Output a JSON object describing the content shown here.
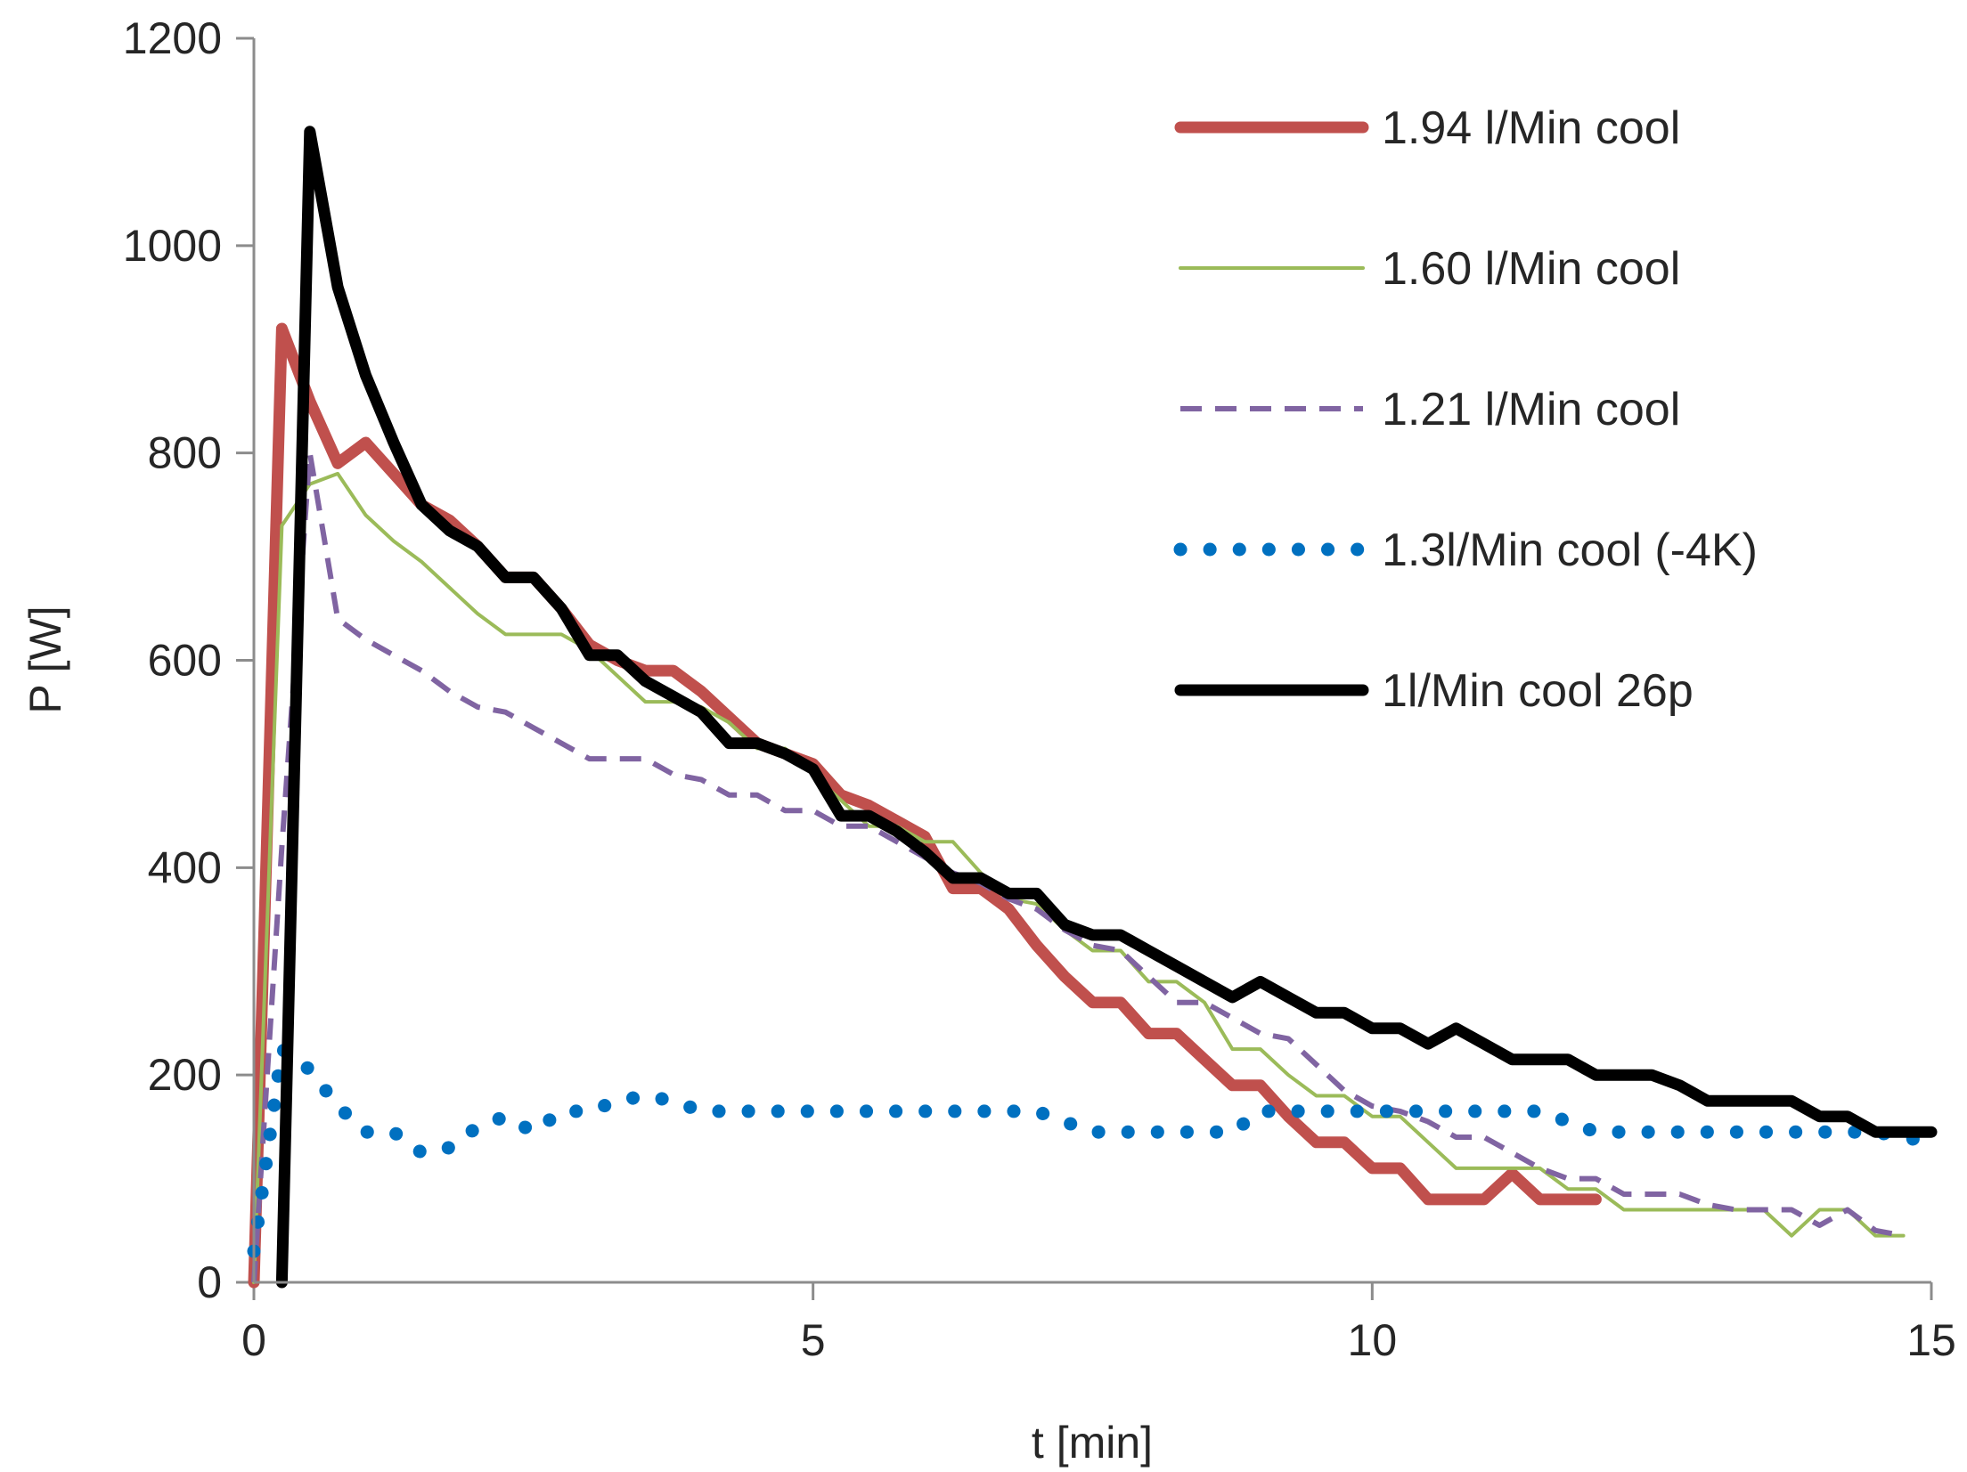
{
  "chart_data": {
    "type": "line",
    "title": "",
    "xlabel": "t [min]",
    "ylabel": "P [W]",
    "xlim": [
      0,
      15
    ],
    "ylim": [
      0,
      1200
    ],
    "xticks": [
      0,
      5,
      10,
      15
    ],
    "yticks": [
      0,
      200,
      400,
      600,
      800,
      1000,
      1200
    ],
    "xtick_labels": [
      "0",
      "5",
      "10",
      "15"
    ],
    "ytick_labels": [
      "0",
      "200",
      "400",
      "600",
      "800",
      "1000",
      "1200"
    ],
    "grid": false,
    "legend_position": "top-right",
    "series": [
      {
        "name": "1.94 l/Min cool",
        "color": "#C0504D",
        "style": "solid-thick",
        "points": [
          [
            0,
            0
          ],
          [
            0.25,
            920
          ],
          [
            0.5,
            850
          ],
          [
            0.75,
            790
          ],
          [
            1.0,
            810
          ],
          [
            1.25,
            780
          ],
          [
            1.5,
            750
          ],
          [
            1.75,
            735
          ],
          [
            2.0,
            710
          ],
          [
            2.25,
            680
          ],
          [
            2.5,
            680
          ],
          [
            2.75,
            650
          ],
          [
            3.0,
            615
          ],
          [
            3.25,
            600
          ],
          [
            3.5,
            590
          ],
          [
            3.75,
            590
          ],
          [
            4.0,
            570
          ],
          [
            4.25,
            545
          ],
          [
            4.5,
            520
          ],
          [
            4.75,
            510
          ],
          [
            5.0,
            500
          ],
          [
            5.25,
            470
          ],
          [
            5.5,
            460
          ],
          [
            5.75,
            445
          ],
          [
            6.0,
            430
          ],
          [
            6.25,
            380
          ],
          [
            6.5,
            380
          ],
          [
            6.75,
            360
          ],
          [
            7.0,
            325
          ],
          [
            7.25,
            295
          ],
          [
            7.5,
            270
          ],
          [
            7.75,
            270
          ],
          [
            8.0,
            240
          ],
          [
            8.25,
            240
          ],
          [
            8.5,
            215
          ],
          [
            8.75,
            190
          ],
          [
            9.0,
            190
          ],
          [
            9.25,
            160
          ],
          [
            9.5,
            135
          ],
          [
            9.75,
            135
          ],
          [
            10.0,
            110
          ],
          [
            10.25,
            110
          ],
          [
            10.5,
            80
          ],
          [
            10.75,
            80
          ],
          [
            11.0,
            80
          ],
          [
            11.25,
            105
          ],
          [
            11.5,
            80
          ],
          [
            11.75,
            80
          ],
          [
            12.0,
            80
          ]
        ]
      },
      {
        "name": "1.60 l/Min cool",
        "color": "#9BBB59",
        "style": "solid-thin",
        "points": [
          [
            0,
            0
          ],
          [
            0.25,
            730
          ],
          [
            0.5,
            770
          ],
          [
            0.75,
            780
          ],
          [
            1.0,
            740
          ],
          [
            1.25,
            715
          ],
          [
            1.5,
            695
          ],
          [
            1.75,
            670
          ],
          [
            2.0,
            645
          ],
          [
            2.25,
            625
          ],
          [
            2.5,
            625
          ],
          [
            2.75,
            625
          ],
          [
            3.0,
            610
          ],
          [
            3.25,
            585
          ],
          [
            3.5,
            560
          ],
          [
            3.75,
            560
          ],
          [
            4.0,
            555
          ],
          [
            4.25,
            540
          ],
          [
            4.5,
            515
          ],
          [
            4.75,
            515
          ],
          [
            5.0,
            490
          ],
          [
            5.25,
            465
          ],
          [
            5.5,
            440
          ],
          [
            5.75,
            440
          ],
          [
            6.0,
            425
          ],
          [
            6.25,
            425
          ],
          [
            6.5,
            395
          ],
          [
            6.75,
            370
          ],
          [
            7.0,
            365
          ],
          [
            7.25,
            340
          ],
          [
            7.5,
            320
          ],
          [
            7.75,
            320
          ],
          [
            8.0,
            290
          ],
          [
            8.25,
            290
          ],
          [
            8.5,
            270
          ],
          [
            8.75,
            225
          ],
          [
            9.0,
            225
          ],
          [
            9.25,
            200
          ],
          [
            9.5,
            180
          ],
          [
            9.75,
            180
          ],
          [
            10.0,
            160
          ],
          [
            10.25,
            160
          ],
          [
            10.5,
            135
          ],
          [
            10.75,
            110
          ],
          [
            11.0,
            110
          ],
          [
            11.25,
            110
          ],
          [
            11.5,
            110
          ],
          [
            11.75,
            90
          ],
          [
            12.0,
            90
          ],
          [
            12.25,
            70
          ],
          [
            12.5,
            70
          ],
          [
            12.75,
            70
          ],
          [
            13.0,
            70
          ],
          [
            13.25,
            70
          ],
          [
            13.5,
            70
          ],
          [
            13.75,
            45
          ],
          [
            14.0,
            70
          ],
          [
            14.25,
            70
          ],
          [
            14.5,
            45
          ],
          [
            14.75,
            45
          ]
        ]
      },
      {
        "name": "1.21 l/Min cool",
        "color": "#8064A2",
        "style": "dashed",
        "points": [
          [
            0,
            0
          ],
          [
            0.25,
            420
          ],
          [
            0.5,
            800
          ],
          [
            0.75,
            640
          ],
          [
            1.0,
            620
          ],
          [
            1.25,
            605
          ],
          [
            1.5,
            590
          ],
          [
            1.75,
            570
          ],
          [
            2.0,
            555
          ],
          [
            2.25,
            550
          ],
          [
            2.5,
            535
          ],
          [
            2.75,
            520
          ],
          [
            3.0,
            505
          ],
          [
            3.25,
            505
          ],
          [
            3.5,
            505
          ],
          [
            3.75,
            490
          ],
          [
            4.0,
            485
          ],
          [
            4.25,
            470
          ],
          [
            4.5,
            470
          ],
          [
            4.75,
            455
          ],
          [
            5.0,
            455
          ],
          [
            5.25,
            440
          ],
          [
            5.5,
            440
          ],
          [
            5.75,
            425
          ],
          [
            6.0,
            410
          ],
          [
            6.25,
            395
          ],
          [
            6.5,
            385
          ],
          [
            6.75,
            370
          ],
          [
            7.0,
            360
          ],
          [
            7.25,
            340
          ],
          [
            7.5,
            325
          ],
          [
            7.75,
            320
          ],
          [
            8.0,
            295
          ],
          [
            8.25,
            270
          ],
          [
            8.5,
            270
          ],
          [
            8.75,
            255
          ],
          [
            9.0,
            240
          ],
          [
            9.25,
            235
          ],
          [
            9.5,
            210
          ],
          [
            9.75,
            185
          ],
          [
            10.0,
            170
          ],
          [
            10.25,
            165
          ],
          [
            10.5,
            155
          ],
          [
            10.75,
            140
          ],
          [
            11.0,
            140
          ],
          [
            11.25,
            125
          ],
          [
            11.5,
            110
          ],
          [
            11.75,
            100
          ],
          [
            12.0,
            100
          ],
          [
            12.25,
            85
          ],
          [
            12.5,
            85
          ],
          [
            12.75,
            85
          ],
          [
            13.0,
            75
          ],
          [
            13.25,
            70
          ],
          [
            13.5,
            70
          ],
          [
            13.75,
            70
          ],
          [
            14.0,
            55
          ],
          [
            14.25,
            70
          ],
          [
            14.5,
            50
          ],
          [
            14.75,
            45
          ]
        ]
      },
      {
        "name": "1.3l/Min cool (-4K)",
        "color": "#0070C0",
        "style": "dotted",
        "points": [
          [
            0,
            30
          ],
          [
            0.25,
            225
          ],
          [
            0.5,
            205
          ],
          [
            0.75,
            170
          ],
          [
            1.0,
            145
          ],
          [
            1.25,
            145
          ],
          [
            1.5,
            125
          ],
          [
            1.75,
            130
          ],
          [
            2.0,
            150
          ],
          [
            2.25,
            160
          ],
          [
            2.5,
            145
          ],
          [
            2.75,
            165
          ],
          [
            3.0,
            165
          ],
          [
            3.25,
            175
          ],
          [
            3.5,
            180
          ],
          [
            3.75,
            175
          ],
          [
            4.0,
            165
          ],
          [
            4.25,
            165
          ],
          [
            4.5,
            165
          ],
          [
            5.0,
            165
          ],
          [
            5.5,
            165
          ],
          [
            6.0,
            165
          ],
          [
            6.5,
            165
          ],
          [
            7.0,
            165
          ],
          [
            7.5,
            145
          ],
          [
            7.75,
            145
          ],
          [
            8.0,
            145
          ],
          [
            8.5,
            145
          ],
          [
            8.75,
            145
          ],
          [
            9.0,
            165
          ],
          [
            9.5,
            165
          ],
          [
            10.0,
            165
          ],
          [
            10.5,
            165
          ],
          [
            11.0,
            165
          ],
          [
            11.5,
            165
          ],
          [
            12.0,
            145
          ],
          [
            12.5,
            145
          ],
          [
            13.0,
            145
          ],
          [
            13.5,
            145
          ],
          [
            14.0,
            145
          ],
          [
            14.5,
            145
          ],
          [
            15.0,
            135
          ]
        ]
      },
      {
        "name": "1l/Min cool 26p",
        "color": "#000000",
        "style": "solid-thick",
        "points": [
          [
            0.25,
            0
          ],
          [
            0.5,
            1110
          ],
          [
            0.75,
            960
          ],
          [
            1.0,
            875
          ],
          [
            1.25,
            810
          ],
          [
            1.5,
            750
          ],
          [
            1.75,
            725
          ],
          [
            2.0,
            710
          ],
          [
            2.25,
            680
          ],
          [
            2.5,
            680
          ],
          [
            2.75,
            650
          ],
          [
            3.0,
            605
          ],
          [
            3.25,
            605
          ],
          [
            3.5,
            580
          ],
          [
            3.75,
            565
          ],
          [
            4.0,
            550
          ],
          [
            4.25,
            520
          ],
          [
            4.5,
            520
          ],
          [
            4.75,
            510
          ],
          [
            5.0,
            495
          ],
          [
            5.25,
            450
          ],
          [
            5.5,
            450
          ],
          [
            5.75,
            435
          ],
          [
            6.0,
            415
          ],
          [
            6.25,
            390
          ],
          [
            6.5,
            390
          ],
          [
            6.75,
            375
          ],
          [
            7.0,
            375
          ],
          [
            7.25,
            345
          ],
          [
            7.5,
            335
          ],
          [
            7.75,
            335
          ],
          [
            8.0,
            320
          ],
          [
            8.25,
            305
          ],
          [
            8.5,
            290
          ],
          [
            8.75,
            275
          ],
          [
            9.0,
            290
          ],
          [
            9.25,
            275
          ],
          [
            9.5,
            260
          ],
          [
            9.75,
            260
          ],
          [
            10.0,
            245
          ],
          [
            10.25,
            245
          ],
          [
            10.5,
            230
          ],
          [
            10.75,
            245
          ],
          [
            11.0,
            230
          ],
          [
            11.25,
            215
          ],
          [
            11.5,
            215
          ],
          [
            11.75,
            215
          ],
          [
            12.0,
            200
          ],
          [
            12.25,
            200
          ],
          [
            12.5,
            200
          ],
          [
            12.75,
            190
          ],
          [
            13.0,
            175
          ],
          [
            13.25,
            175
          ],
          [
            13.5,
            175
          ],
          [
            13.75,
            175
          ],
          [
            14.0,
            160
          ],
          [
            14.25,
            160
          ],
          [
            14.5,
            145
          ],
          [
            14.75,
            145
          ],
          [
            15.0,
            145
          ]
        ]
      }
    ]
  }
}
